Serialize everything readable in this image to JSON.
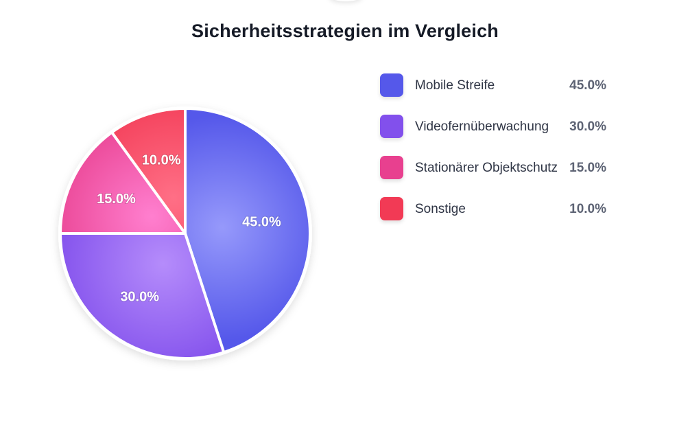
{
  "chart_data": {
    "type": "pie",
    "title": "Sicherheitsstrategien im Vergleich",
    "start_angle": "top",
    "direction": "clockwise",
    "legend_position": "right",
    "slices": [
      {
        "label": "Mobile Streife",
        "value": 45.0,
        "display": "45.0%",
        "color": "#5558ea",
        "light": "#9699fb"
      },
      {
        "label": "Videofernüberwachung",
        "value": 30.0,
        "display": "30.0%",
        "color": "#8250ec",
        "light": "#b58cfb"
      },
      {
        "label": "Stationärer Objektschutz",
        "value": 15.0,
        "display": "15.0%",
        "color": "#e8408f",
        "light": "#ff7fcf"
      },
      {
        "label": "Sonstige",
        "value": 10.0,
        "display": "10.0%",
        "color": "#f23a55",
        "light": "#ff6f86"
      }
    ]
  }
}
